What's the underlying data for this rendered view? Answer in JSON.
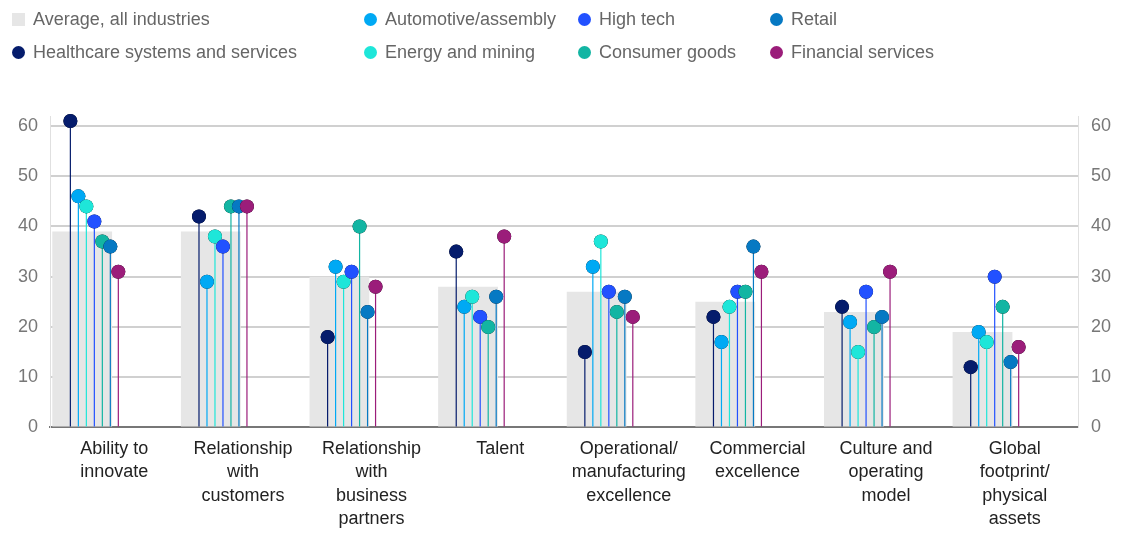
{
  "chart_data": {
    "type": "lollipop",
    "categories": [
      "Ability to innovate",
      "Relationship with customers",
      "Relationship with business partners",
      "Talent",
      "Operational/ manufacturing excellence",
      "Commercial excellence",
      "Culture and operating model",
      "Global footprint/ physical assets"
    ],
    "series": [
      {
        "name": "Average, all industries",
        "type": "bar",
        "color": "#e6e6e6",
        "values": [
          39,
          39,
          30,
          28,
          27,
          25,
          23,
          19
        ]
      },
      {
        "name": "Healthcare systems and services",
        "color": "#051c6c",
        "values": [
          61,
          42,
          18,
          35,
          15,
          22,
          24,
          12
        ]
      },
      {
        "name": "Automotive/assembly",
        "color": "#00a9f4",
        "values": [
          46,
          29,
          32,
          24,
          32,
          17,
          21,
          19
        ]
      },
      {
        "name": "Energy and mining",
        "color": "#1ee6d9",
        "values": [
          44,
          38,
          29,
          26,
          37,
          24,
          15,
          17
        ]
      },
      {
        "name": "High tech",
        "color": "#2251ff",
        "values": [
          41,
          36,
          31,
          22,
          27,
          27,
          27,
          30
        ]
      },
      {
        "name": "Consumer goods",
        "color": "#13b5a3",
        "values": [
          37,
          44,
          40,
          20,
          23,
          27,
          20,
          24
        ]
      },
      {
        "name": "Retail",
        "color": "#0679c3",
        "values": [
          36,
          44,
          23,
          26,
          26,
          36,
          22,
          13
        ]
      },
      {
        "name": "Financial services",
        "color": "#9b1d7a",
        "values": [
          31,
          44,
          28,
          38,
          22,
          31,
          31,
          16
        ]
      }
    ],
    "ylim": [
      0,
      62
    ],
    "yticks": [
      0,
      10,
      20,
      30,
      40,
      50,
      60
    ],
    "y2lim": [
      0,
      62
    ],
    "y2ticks": [
      0,
      10,
      20,
      30,
      40,
      50,
      60
    ],
    "grid": "y",
    "legend": "top",
    "marker": "circle"
  }
}
